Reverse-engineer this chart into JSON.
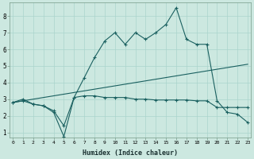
{
  "x": [
    0,
    1,
    2,
    3,
    4,
    5,
    6,
    7,
    8,
    9,
    10,
    11,
    12,
    13,
    14,
    15,
    16,
    17,
    18,
    19,
    20,
    21,
    22,
    23
  ],
  "line1": [
    2.8,
    3.0,
    2.7,
    2.6,
    2.2,
    0.75,
    3.1,
    4.3,
    5.5,
    6.5,
    7.0,
    6.3,
    7.0,
    6.6,
    7.0,
    7.5,
    8.5,
    6.6,
    6.3,
    6.3,
    2.9,
    2.2,
    2.1,
    1.6
  ],
  "line2": [
    2.8,
    2.9,
    2.7,
    2.6,
    2.3,
    1.4,
    3.1,
    3.2,
    3.2,
    3.1,
    3.1,
    3.1,
    3.0,
    3.0,
    2.95,
    2.95,
    2.95,
    2.95,
    2.9,
    2.9,
    2.5,
    2.5,
    2.5,
    2.5
  ],
  "line3_x": [
    0,
    23
  ],
  "line3_y": [
    2.8,
    5.1
  ],
  "bg_color": "#cce8e0",
  "line_color": "#1a6060",
  "grid_color": "#aad4cc",
  "xlabel": "Humidex (Indice chaleur)",
  "ylim": [
    0.7,
    8.8
  ],
  "xlim": [
    -0.3,
    23.3
  ],
  "yticks": [
    1,
    2,
    3,
    4,
    5,
    6,
    7,
    8
  ],
  "xticks": [
    0,
    1,
    2,
    3,
    4,
    5,
    6,
    7,
    8,
    9,
    10,
    11,
    12,
    13,
    14,
    15,
    16,
    17,
    18,
    19,
    20,
    21,
    22,
    23
  ]
}
